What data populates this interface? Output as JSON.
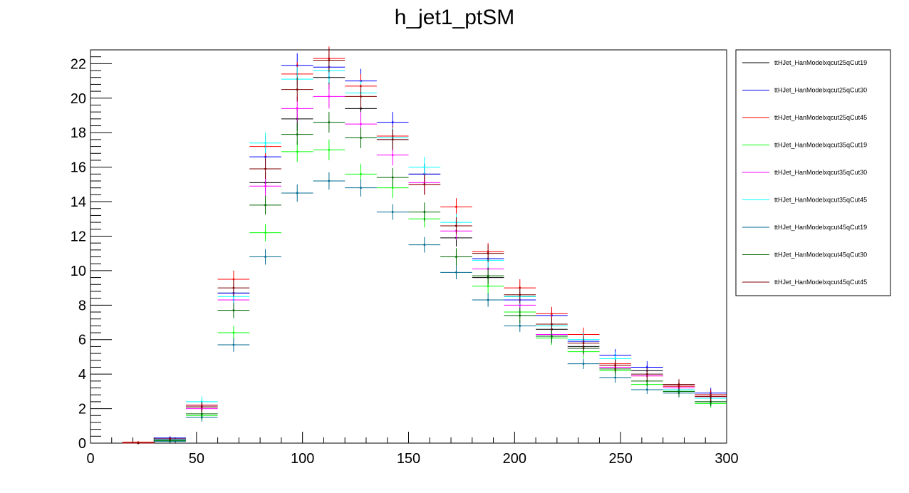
{
  "chart_data": {
    "type": "scatter",
    "title": "h_jet1_ptSM",
    "xlabel": "",
    "ylabel": "",
    "xlim": [
      0,
      300
    ],
    "ylim": [
      0,
      22.8
    ],
    "bin_width": 15,
    "grid": false,
    "legend_position": "top-right (outside plot)",
    "x_ticks": [
      "0",
      "50",
      "100",
      "150",
      "200",
      "250",
      "300"
    ],
    "y_ticks": [
      "0",
      "2",
      "4",
      "6",
      "8",
      "10",
      "12",
      "14",
      "16",
      "18",
      "20",
      "22"
    ],
    "x": [
      22.5,
      37.5,
      52.5,
      67.5,
      82.5,
      97.5,
      112.5,
      127.5,
      142.5,
      157.5,
      172.5,
      187.5,
      202.5,
      217.5,
      232.5,
      247.5,
      262.5,
      277.5,
      292.5
    ],
    "series": [
      {
        "name": "ttHJet_HanModelxqcut25qCut19",
        "color": "#000000",
        "values": [
          0.05,
          0.25,
          2.1,
          8.7,
          15.1,
          18.8,
          21.2,
          19.4,
          17.6,
          15.6,
          11.9,
          9.6,
          8.5,
          6.6,
          5.6,
          4.5,
          4.2,
          3.4,
          2.8
        ],
        "errors": [
          0.05,
          0.1,
          0.3,
          0.5,
          0.6,
          0.7,
          0.7,
          0.7,
          0.6,
          0.6,
          0.5,
          0.5,
          0.5,
          0.4,
          0.4,
          0.35,
          0.35,
          0.3,
          0.3
        ]
      },
      {
        "name": "ttHJet_HanModelxqcut25qCut30",
        "color": "#0000ff",
        "values": [
          0.0,
          0.3,
          2.2,
          8.7,
          16.6,
          21.9,
          21.8,
          21.0,
          18.6,
          15.6,
          12.6,
          10.7,
          8.3,
          7.4,
          5.9,
          5.1,
          4.4,
          3.3,
          2.9
        ],
        "errors": [
          0.02,
          0.1,
          0.3,
          0.5,
          0.6,
          0.7,
          0.7,
          0.7,
          0.6,
          0.6,
          0.5,
          0.5,
          0.5,
          0.4,
          0.4,
          0.35,
          0.35,
          0.3,
          0.3
        ]
      },
      {
        "name": "ttHJet_HanModelxqcut25qCut45",
        "color": "#ff0000",
        "values": [
          0.05,
          0.2,
          2.2,
          9.5,
          17.2,
          21.4,
          22.3,
          20.7,
          17.8,
          15.0,
          13.7,
          11.1,
          9.0,
          7.5,
          6.3,
          4.6,
          3.9,
          3.3,
          2.8
        ],
        "errors": [
          0.05,
          0.1,
          0.3,
          0.5,
          0.6,
          0.7,
          0.7,
          0.7,
          0.6,
          0.6,
          0.5,
          0.5,
          0.5,
          0.4,
          0.4,
          0.35,
          0.35,
          0.3,
          0.3
        ]
      },
      {
        "name": "ttHJet_HanModelxqcut35qCut19",
        "color": "#00ff00",
        "values": [
          0.0,
          0.15,
          1.6,
          6.4,
          12.2,
          16.9,
          17.0,
          15.6,
          14.8,
          13.0,
          10.8,
          9.1,
          7.6,
          6.1,
          5.3,
          4.2,
          3.4,
          3.0,
          2.3
        ],
        "errors": [
          0.02,
          0.08,
          0.3,
          0.4,
          0.5,
          0.6,
          0.6,
          0.6,
          0.6,
          0.5,
          0.5,
          0.5,
          0.4,
          0.4,
          0.35,
          0.35,
          0.3,
          0.3,
          0.25
        ]
      },
      {
        "name": "ttHJet_HanModelxqcut35qCut30",
        "color": "#ff00ff",
        "values": [
          0.0,
          0.2,
          2.0,
          8.3,
          14.9,
          19.4,
          20.1,
          18.5,
          16.7,
          15.1,
          12.3,
          10.1,
          8.0,
          6.3,
          5.5,
          4.4,
          3.9,
          3.2,
          2.7
        ],
        "errors": [
          0.02,
          0.1,
          0.3,
          0.5,
          0.6,
          0.7,
          0.7,
          0.7,
          0.6,
          0.6,
          0.5,
          0.5,
          0.5,
          0.4,
          0.4,
          0.35,
          0.35,
          0.3,
          0.3
        ]
      },
      {
        "name": "ttHJet_HanModelxqcut35qCut45",
        "color": "#00ffff",
        "values": [
          0.0,
          0.2,
          2.4,
          8.5,
          17.4,
          21.1,
          21.6,
          20.3,
          17.7,
          16.0,
          12.8,
          10.6,
          8.5,
          6.8,
          6.0,
          4.9,
          4.0,
          3.1,
          2.6
        ],
        "errors": [
          0.02,
          0.1,
          0.3,
          0.5,
          0.6,
          0.7,
          0.7,
          0.7,
          0.6,
          0.6,
          0.5,
          0.5,
          0.5,
          0.4,
          0.4,
          0.35,
          0.35,
          0.3,
          0.3
        ]
      },
      {
        "name": "ttHJet_HanModelxqcut45qCut19",
        "color": "#006b8f",
        "values": [
          0.0,
          0.1,
          1.5,
          5.7,
          10.8,
          14.5,
          15.2,
          14.8,
          13.4,
          11.5,
          9.9,
          8.3,
          6.8,
          6.2,
          4.6,
          3.8,
          3.1,
          2.9,
          2.4
        ],
        "errors": [
          0.02,
          0.08,
          0.25,
          0.4,
          0.45,
          0.5,
          0.5,
          0.5,
          0.45,
          0.45,
          0.4,
          0.4,
          0.35,
          0.35,
          0.3,
          0.3,
          0.25,
          0.25,
          0.25
        ]
      },
      {
        "name": "ttHJet_HanModelxqcut45qCut30",
        "color": "#006600",
        "values": [
          0.0,
          0.15,
          1.7,
          7.7,
          13.8,
          17.9,
          18.6,
          17.7,
          15.4,
          13.4,
          10.8,
          9.7,
          7.4,
          6.2,
          5.5,
          4.3,
          3.6,
          3.0,
          2.4
        ],
        "errors": [
          0.02,
          0.08,
          0.3,
          0.45,
          0.55,
          0.6,
          0.6,
          0.6,
          0.55,
          0.55,
          0.5,
          0.5,
          0.45,
          0.4,
          0.35,
          0.35,
          0.3,
          0.3,
          0.25
        ]
      },
      {
        "name": "ttHJet_HanModelxqcut45qCut45",
        "color": "#800000",
        "values": [
          0.0,
          0.25,
          2.1,
          9.0,
          15.9,
          20.5,
          22.2,
          20.1,
          17.6,
          15.0,
          12.6,
          11.0,
          8.6,
          6.9,
          5.8,
          4.5,
          4.0,
          3.4,
          2.7
        ],
        "errors": [
          0.02,
          0.1,
          0.3,
          0.5,
          0.6,
          0.7,
          0.7,
          0.7,
          0.6,
          0.6,
          0.5,
          0.5,
          0.5,
          0.4,
          0.4,
          0.35,
          0.35,
          0.3,
          0.3
        ]
      }
    ]
  }
}
